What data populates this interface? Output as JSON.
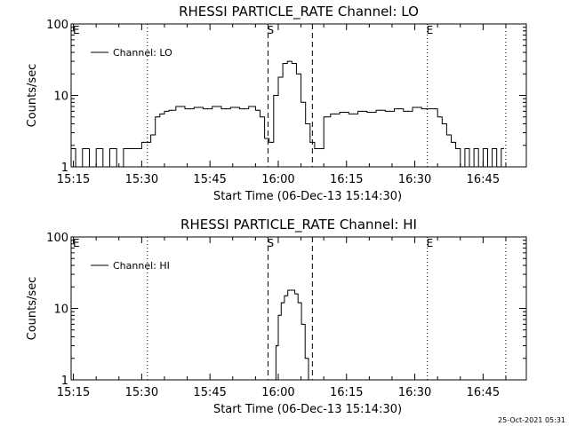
{
  "chart_data": [
    {
      "type": "line",
      "title": "RHESSI PARTICLE_RATE Channel: LO",
      "xlabel": "Start Time (06-Dec-13 15:14:30)",
      "ylabel": "Counts/sec",
      "yscale": "log",
      "ylim": [
        1,
        100
      ],
      "xlim": [
        "15:14:30",
        "16:54:30"
      ],
      "x_ticks": [
        "15:15",
        "15:30",
        "15:45",
        "16:00",
        "16:15",
        "16:30",
        "16:45"
      ],
      "y_ticks": [
        "1",
        "10",
        "100"
      ],
      "legend": {
        "placement": "top-left",
        "entries": [
          "Channel: LO"
        ]
      },
      "markers": [
        {
          "label": "S",
          "time": "15:57:45",
          "style": "dashed"
        },
        {
          "label": "",
          "time": "16:07:30",
          "style": "dashed"
        },
        {
          "label": "E",
          "time": "16:32:45",
          "style": "dotted"
        },
        {
          "label": "",
          "time": "15:31:15",
          "style": "dotted"
        },
        {
          "label": "",
          "time": "16:50:00",
          "style": "dotted"
        }
      ],
      "series": [
        {
          "name": "Channel: LO",
          "minutes_from_start": [
            0,
            2,
            3,
            5,
            6,
            8,
            9,
            11,
            12,
            14,
            15,
            16,
            17,
            18,
            19,
            20,
            21,
            22,
            24,
            26,
            28,
            30,
            32,
            34,
            36,
            38,
            40,
            41,
            42,
            43,
            44,
            45,
            46,
            47,
            48,
            49,
            50,
            51,
            52,
            53,
            54,
            55,
            56,
            58,
            60,
            62,
            64,
            66,
            68,
            70,
            72,
            74,
            76,
            78,
            80,
            81,
            82,
            83,
            84,
            85,
            86,
            87,
            88,
            89,
            90,
            91,
            92,
            93,
            94,
            95
          ],
          "values": [
            1.8,
            1,
            1.8,
            1,
            1.8,
            1,
            1.8,
            1,
            1.8,
            1.8,
            1.8,
            2.2,
            2.2,
            2.8,
            5,
            5.5,
            6,
            6.2,
            7,
            6.5,
            6.8,
            6.5,
            7,
            6.5,
            6.8,
            6.5,
            7,
            6.2,
            5,
            2.5,
            2.2,
            10,
            18,
            28,
            30,
            28,
            20,
            8,
            4,
            2.2,
            1.8,
            1.8,
            5,
            5.5,
            5.8,
            5.5,
            6,
            5.8,
            6.2,
            6,
            6.5,
            6,
            6.8,
            6.5,
            6.5,
            5,
            4,
            2.8,
            2.2,
            1.8,
            1,
            1.8,
            1,
            1.8,
            1,
            1.8,
            1,
            1.8,
            1,
            1.8
          ]
        }
      ]
    },
    {
      "type": "line",
      "title": "RHESSI PARTICLE_RATE Channel: HI",
      "xlabel": "Start Time (06-Dec-13 15:14:30)",
      "ylabel": "Counts/sec",
      "yscale": "log",
      "ylim": [
        1,
        100
      ],
      "xlim": [
        "15:14:30",
        "16:54:30"
      ],
      "x_ticks": [
        "15:15",
        "15:30",
        "15:45",
        "16:00",
        "16:15",
        "16:30",
        "16:45"
      ],
      "y_ticks": [
        "1",
        "10",
        "100"
      ],
      "legend": {
        "placement": "top-left",
        "entries": [
          "Channel: HI"
        ]
      },
      "markers": [
        {
          "label": "S",
          "time": "15:57:45",
          "style": "dashed"
        },
        {
          "label": "",
          "time": "16:07:30",
          "style": "dashed"
        },
        {
          "label": "E",
          "time": "16:32:45",
          "style": "dotted"
        },
        {
          "label": "",
          "time": "15:31:15",
          "style": "dotted"
        },
        {
          "label": "",
          "time": "16:50:00",
          "style": "dotted"
        }
      ],
      "series": [
        {
          "name": "Channel: HI",
          "minutes_from_start": [
            44.8,
            45.2,
            45.8,
            46.5,
            47.2,
            48,
            48.8,
            49.5,
            50.2,
            51,
            51.8,
            52.5
          ],
          "values": [
            1,
            3,
            8,
            12,
            15,
            18,
            18,
            16,
            12,
            6,
            2,
            1
          ]
        }
      ]
    }
  ],
  "footer": {
    "timestamp": "25-Oct-2021 05:31"
  }
}
